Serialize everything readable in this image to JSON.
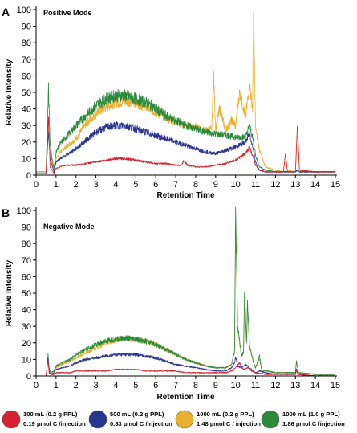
{
  "chart_data": [
    {
      "type": "line",
      "panel_letter": "A",
      "title": "Positive Mode",
      "xlabel": "Retention Time",
      "ylabel": "Relative Intensity",
      "xlim": [
        0,
        15
      ],
      "ylim": [
        0,
        100
      ],
      "xticks": [
        "0",
        "1",
        "2",
        "3",
        "4",
        "5",
        "6",
        "7",
        "8",
        "9",
        "10",
        "11",
        "12",
        "13",
        "14",
        "15"
      ],
      "yticks": [
        "0",
        "10",
        "20",
        "30",
        "40",
        "50",
        "60",
        "70",
        "80",
        "90",
        "100"
      ],
      "grid": false,
      "series": [
        {
          "color": "#e8b030",
          "x": [
            0,
            0.5,
            0.62,
            0.7,
            0.8,
            0.9,
            1.0,
            1.2,
            1.5,
            2.0,
            2.5,
            3.0,
            3.5,
            4.0,
            4.5,
            5.0,
            5.5,
            6.0,
            6.5,
            7.0,
            7.5,
            8.0,
            8.5,
            8.8,
            8.9,
            9.0,
            9.2,
            9.5,
            9.8,
            10.0,
            10.2,
            10.5,
            10.7,
            10.85,
            10.9,
            11.0,
            11.2,
            11.5,
            12.0,
            12.4,
            12.5,
            12.6,
            13.0,
            13.1,
            13.2,
            14.0,
            15.0
          ],
          "y": [
            2,
            2,
            28,
            15,
            8,
            3,
            10,
            14,
            17,
            22,
            31,
            37,
            41,
            44,
            45,
            44,
            41,
            38,
            35,
            32,
            30,
            29,
            27,
            28,
            60,
            28,
            40,
            27,
            33,
            30,
            50,
            35,
            55,
            40,
            100,
            28,
            15,
            5,
            3,
            2,
            13,
            3,
            2,
            28,
            3,
            2,
            2
          ]
        },
        {
          "color": "#2a8a3c",
          "x": [
            0,
            0.5,
            0.62,
            0.7,
            0.8,
            0.9,
            1.0,
            1.2,
            1.5,
            2.0,
            2.5,
            3.0,
            3.5,
            4.0,
            4.5,
            5.0,
            5.5,
            6.0,
            6.5,
            7.0,
            7.5,
            8.0,
            8.5,
            9.0,
            9.5,
            10.0,
            10.5,
            10.7,
            10.9,
            11.0,
            11.2,
            11.5,
            12.0,
            12.5,
            13.0,
            13.1,
            13.2,
            14.0,
            15.0
          ],
          "y": [
            2,
            2,
            52,
            20,
            10,
            4,
            14,
            19,
            23,
            30,
            36,
            42,
            46,
            48,
            48,
            46,
            44,
            40,
            36,
            33,
            30,
            28,
            26,
            25,
            24,
            23,
            23,
            30,
            20,
            12,
            5,
            3,
            2,
            2,
            2,
            3,
            2,
            2,
            2
          ]
        },
        {
          "color": "#2a3590",
          "x": [
            0,
            0.5,
            0.62,
            0.7,
            0.8,
            0.9,
            1.0,
            1.2,
            1.5,
            2.0,
            2.5,
            3.0,
            3.5,
            4.0,
            4.5,
            5.0,
            5.5,
            6.0,
            6.5,
            7.0,
            7.5,
            8.0,
            8.5,
            9.0,
            9.5,
            10.0,
            10.5,
            10.7,
            10.9,
            11.0,
            11.2,
            11.5,
            12.0,
            13.0,
            13.1,
            13.2,
            14.0,
            15.0
          ],
          "y": [
            1,
            1,
            26,
            10,
            6,
            2,
            8,
            10,
            12,
            16,
            21,
            26,
            29,
            30,
            30,
            28,
            26,
            24,
            22,
            20,
            18,
            16,
            14,
            13,
            15,
            17,
            20,
            25,
            15,
            8,
            3,
            2,
            2,
            2,
            3,
            2,
            2,
            2
          ]
        },
        {
          "color": "#d62230",
          "x": [
            0,
            0.5,
            0.62,
            0.7,
            0.8,
            0.9,
            1.0,
            1.2,
            1.5,
            2.0,
            2.5,
            3.0,
            3.5,
            4.0,
            4.5,
            5.0,
            5.5,
            6.0,
            6.5,
            7.0,
            7.3,
            7.4,
            7.6,
            8.0,
            8.5,
            9.0,
            9.5,
            10.0,
            10.5,
            10.7,
            10.9,
            11.0,
            11.2,
            11.5,
            12.0,
            12.4,
            12.5,
            12.6,
            13.0,
            13.1,
            13.2,
            14.0,
            15.0
          ],
          "y": [
            1,
            1,
            35,
            5,
            3,
            1,
            4,
            5,
            6,
            6,
            7,
            8,
            9,
            10,
            10,
            9,
            8,
            7,
            7,
            6,
            6,
            9,
            6,
            5,
            5,
            6,
            7,
            9,
            13,
            17,
            10,
            6,
            3,
            2,
            2,
            2,
            13,
            2,
            2,
            30,
            3,
            2,
            2
          ]
        }
      ]
    },
    {
      "type": "line",
      "panel_letter": "B",
      "title": "Negative Mode",
      "xlabel": "Retention Time",
      "ylabel": "Relative Intensity",
      "xlim": [
        0,
        15
      ],
      "ylim": [
        0,
        100
      ],
      "xticks": [
        "0",
        "1",
        "2",
        "3",
        "4",
        "5",
        "6",
        "7",
        "8",
        "9",
        "10",
        "11",
        "12",
        "13",
        "14",
        "15"
      ],
      "yticks": [
        "0",
        "10",
        "20",
        "30",
        "40",
        "50",
        "60",
        "70",
        "80",
        "90",
        "100"
      ],
      "grid": false,
      "series": [
        {
          "color": "#e8b030",
          "x": [
            0,
            0.5,
            0.6,
            0.65,
            0.75,
            0.9,
            1.0,
            1.3,
            1.7,
            2.0,
            2.5,
            3.0,
            3.5,
            4.0,
            4.5,
            5.0,
            5.5,
            6.0,
            6.5,
            7.0,
            7.5,
            8.0,
            8.5,
            9.0,
            9.5,
            9.8,
            9.95,
            10.0,
            10.1,
            10.3,
            10.4,
            10.45,
            10.55,
            10.6,
            10.7,
            10.9,
            11.0,
            11.2,
            11.3,
            11.4,
            11.6,
            12.0,
            12.5,
            13.0,
            13.05,
            13.15,
            14.0,
            15.0
          ],
          "y": [
            0,
            0,
            12,
            4,
            2,
            3,
            5,
            7,
            9,
            11,
            14,
            17,
            20,
            22,
            23,
            22,
            21,
            19,
            16,
            13,
            10,
            8,
            6,
            5,
            5,
            7,
            15,
            100,
            30,
            12,
            15,
            48,
            20,
            40,
            18,
            8,
            5,
            10,
            4,
            3,
            3,
            2,
            2,
            2,
            9,
            2,
            1,
            1
          ]
        },
        {
          "color": "#2a8a3c",
          "x": [
            0,
            0.5,
            0.6,
            0.65,
            0.75,
            0.9,
            1.0,
            1.3,
            1.7,
            2.0,
            2.5,
            3.0,
            3.5,
            4.0,
            4.5,
            5.0,
            5.5,
            6.0,
            6.5,
            7.0,
            7.5,
            8.0,
            8.5,
            9.0,
            9.5,
            9.8,
            9.95,
            10.0,
            10.1,
            10.3,
            10.4,
            10.45,
            10.55,
            10.6,
            10.7,
            10.9,
            11.0,
            11.2,
            11.3,
            11.4,
            11.6,
            12.0,
            12.5,
            13.0,
            13.05,
            13.15,
            14.0,
            15.0
          ],
          "y": [
            0,
            0,
            13,
            5,
            2,
            3,
            6,
            8,
            10,
            13,
            16,
            19,
            21,
            22,
            23,
            22,
            21,
            19,
            16,
            13,
            10,
            8,
            6,
            5,
            5,
            7,
            15,
            102,
            30,
            12,
            15,
            52,
            20,
            45,
            18,
            8,
            5,
            12,
            4,
            3,
            3,
            2,
            2,
            2,
            9,
            2,
            1,
            1
          ]
        },
        {
          "color": "#2a3590",
          "x": [
            0,
            0.5,
            0.6,
            0.65,
            0.75,
            0.9,
            1.0,
            1.3,
            1.7,
            2.0,
            2.5,
            3.0,
            3.5,
            4.0,
            4.5,
            5.0,
            5.5,
            6.0,
            6.5,
            7.0,
            7.5,
            8.0,
            8.5,
            9.0,
            9.5,
            9.8,
            9.95,
            10.0,
            10.1,
            10.3,
            10.5,
            10.7,
            10.9,
            11.0,
            11.2,
            11.5,
            12.0,
            12.5,
            13.0,
            13.05,
            13.15,
            14.0,
            15.0
          ],
          "y": [
            0,
            0,
            11,
            3,
            1,
            2,
            4,
            5,
            6,
            8,
            10,
            11,
            12,
            13,
            13,
            13,
            12,
            11,
            9,
            7,
            6,
            5,
            4,
            3,
            3,
            5,
            8,
            12,
            6,
            5,
            7,
            5,
            3,
            2,
            3,
            2,
            1,
            1,
            1,
            4,
            1,
            0,
            0
          ]
        },
        {
          "color": "#d62230",
          "x": [
            0,
            0.5,
            0.6,
            0.65,
            0.75,
            0.9,
            1.0,
            1.3,
            1.7,
            2.0,
            2.5,
            3.0,
            3.5,
            4.0,
            4.5,
            5.0,
            5.5,
            6.0,
            6.5,
            7.0,
            7.5,
            8.0,
            8.5,
            9.0,
            9.5,
            9.8,
            10.0,
            10.2,
            10.4,
            10.6,
            10.8,
            11.0,
            11.5,
            12.0,
            13.0,
            13.05,
            13.15,
            14.0,
            15.0
          ],
          "y": [
            0,
            0,
            10,
            2,
            1,
            1,
            2,
            2,
            2,
            3,
            3,
            3,
            3,
            4,
            4,
            4,
            3,
            3,
            3,
            3,
            2,
            2,
            2,
            2,
            2,
            3,
            5,
            8,
            4,
            5,
            3,
            2,
            1,
            1,
            1,
            3,
            1,
            0,
            0
          ]
        }
      ]
    }
  ],
  "legend": {
    "placement": "bottom",
    "items": [
      {
        "color": "#d62230",
        "line1": "100 mL (0.2 g PPL)",
        "line2": "0.19 µmol C /injection"
      },
      {
        "color": "#2a3590",
        "line1": "500 mL (0.2 g PPL)",
        "line2": "0.83 µmol C /injection"
      },
      {
        "color": "#e8b030",
        "line1": "1000 mL (0.2 g PPL)",
        "line2": "1.48 µmol C / injection"
      },
      {
        "color": "#2a8a3c",
        "line1": "1000 mL (1.0 g PPL)",
        "line2": "1.86 µmol C /injection"
      }
    ]
  }
}
